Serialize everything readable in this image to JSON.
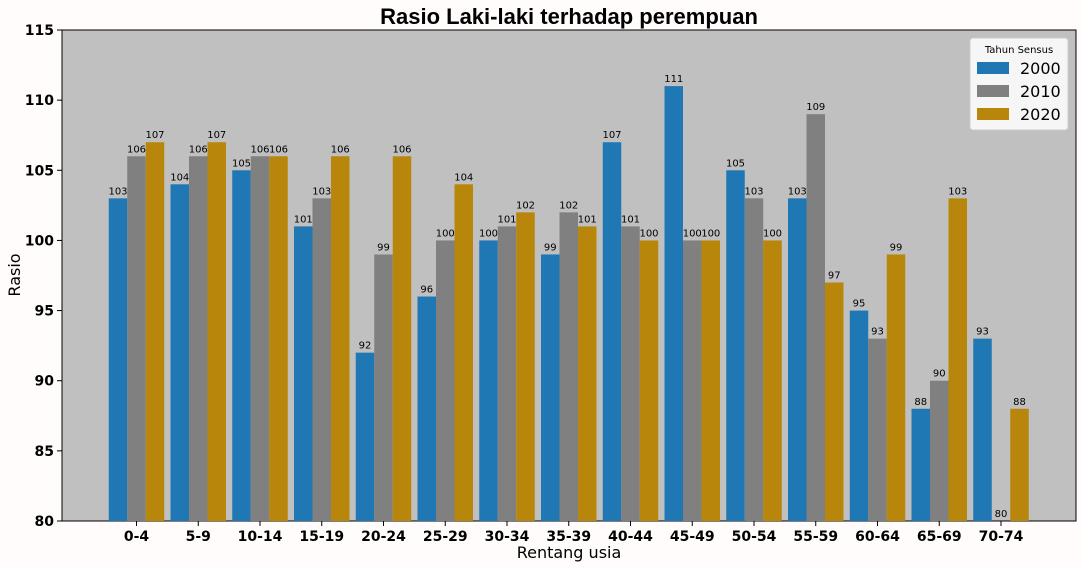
{
  "chart_data": {
    "type": "bar",
    "title": "Rasio Laki-laki terhadap perempuan",
    "xlabel": "Rentang usia",
    "ylabel": "Rasio",
    "ylim": [
      80,
      115
    ],
    "yticks": [
      "80",
      "85",
      "90",
      "95",
      "100",
      "105",
      "110",
      "115"
    ],
    "grid": false,
    "legend": {
      "title": "Tahun Sensus",
      "placement": "top-right"
    },
    "categories": [
      "0-4",
      "5-9",
      "10-14",
      "15-19",
      "20-24",
      "25-29",
      "30-34",
      "35-39",
      "40-44",
      "45-49",
      "50-54",
      "55-59",
      "60-64",
      "65-69",
      "70-74"
    ],
    "series": [
      {
        "name": "2000",
        "color": "#1f77b4",
        "values": [
          103,
          104,
          105,
          101,
          92,
          96,
          100,
          99,
          107,
          111,
          105,
          103,
          95,
          88,
          93
        ]
      },
      {
        "name": "2010",
        "color": "#808080",
        "values": [
          106,
          106,
          106,
          103,
          99,
          100,
          101,
          102,
          101,
          100,
          103,
          109,
          93,
          90,
          80
        ]
      },
      {
        "name": "2020",
        "color": "#b8860b",
        "values": [
          107,
          107,
          106,
          106,
          106,
          104,
          102,
          101,
          100,
          100,
          100,
          97,
          99,
          103,
          88
        ]
      }
    ],
    "plot_background": "#c0c0c0"
  }
}
